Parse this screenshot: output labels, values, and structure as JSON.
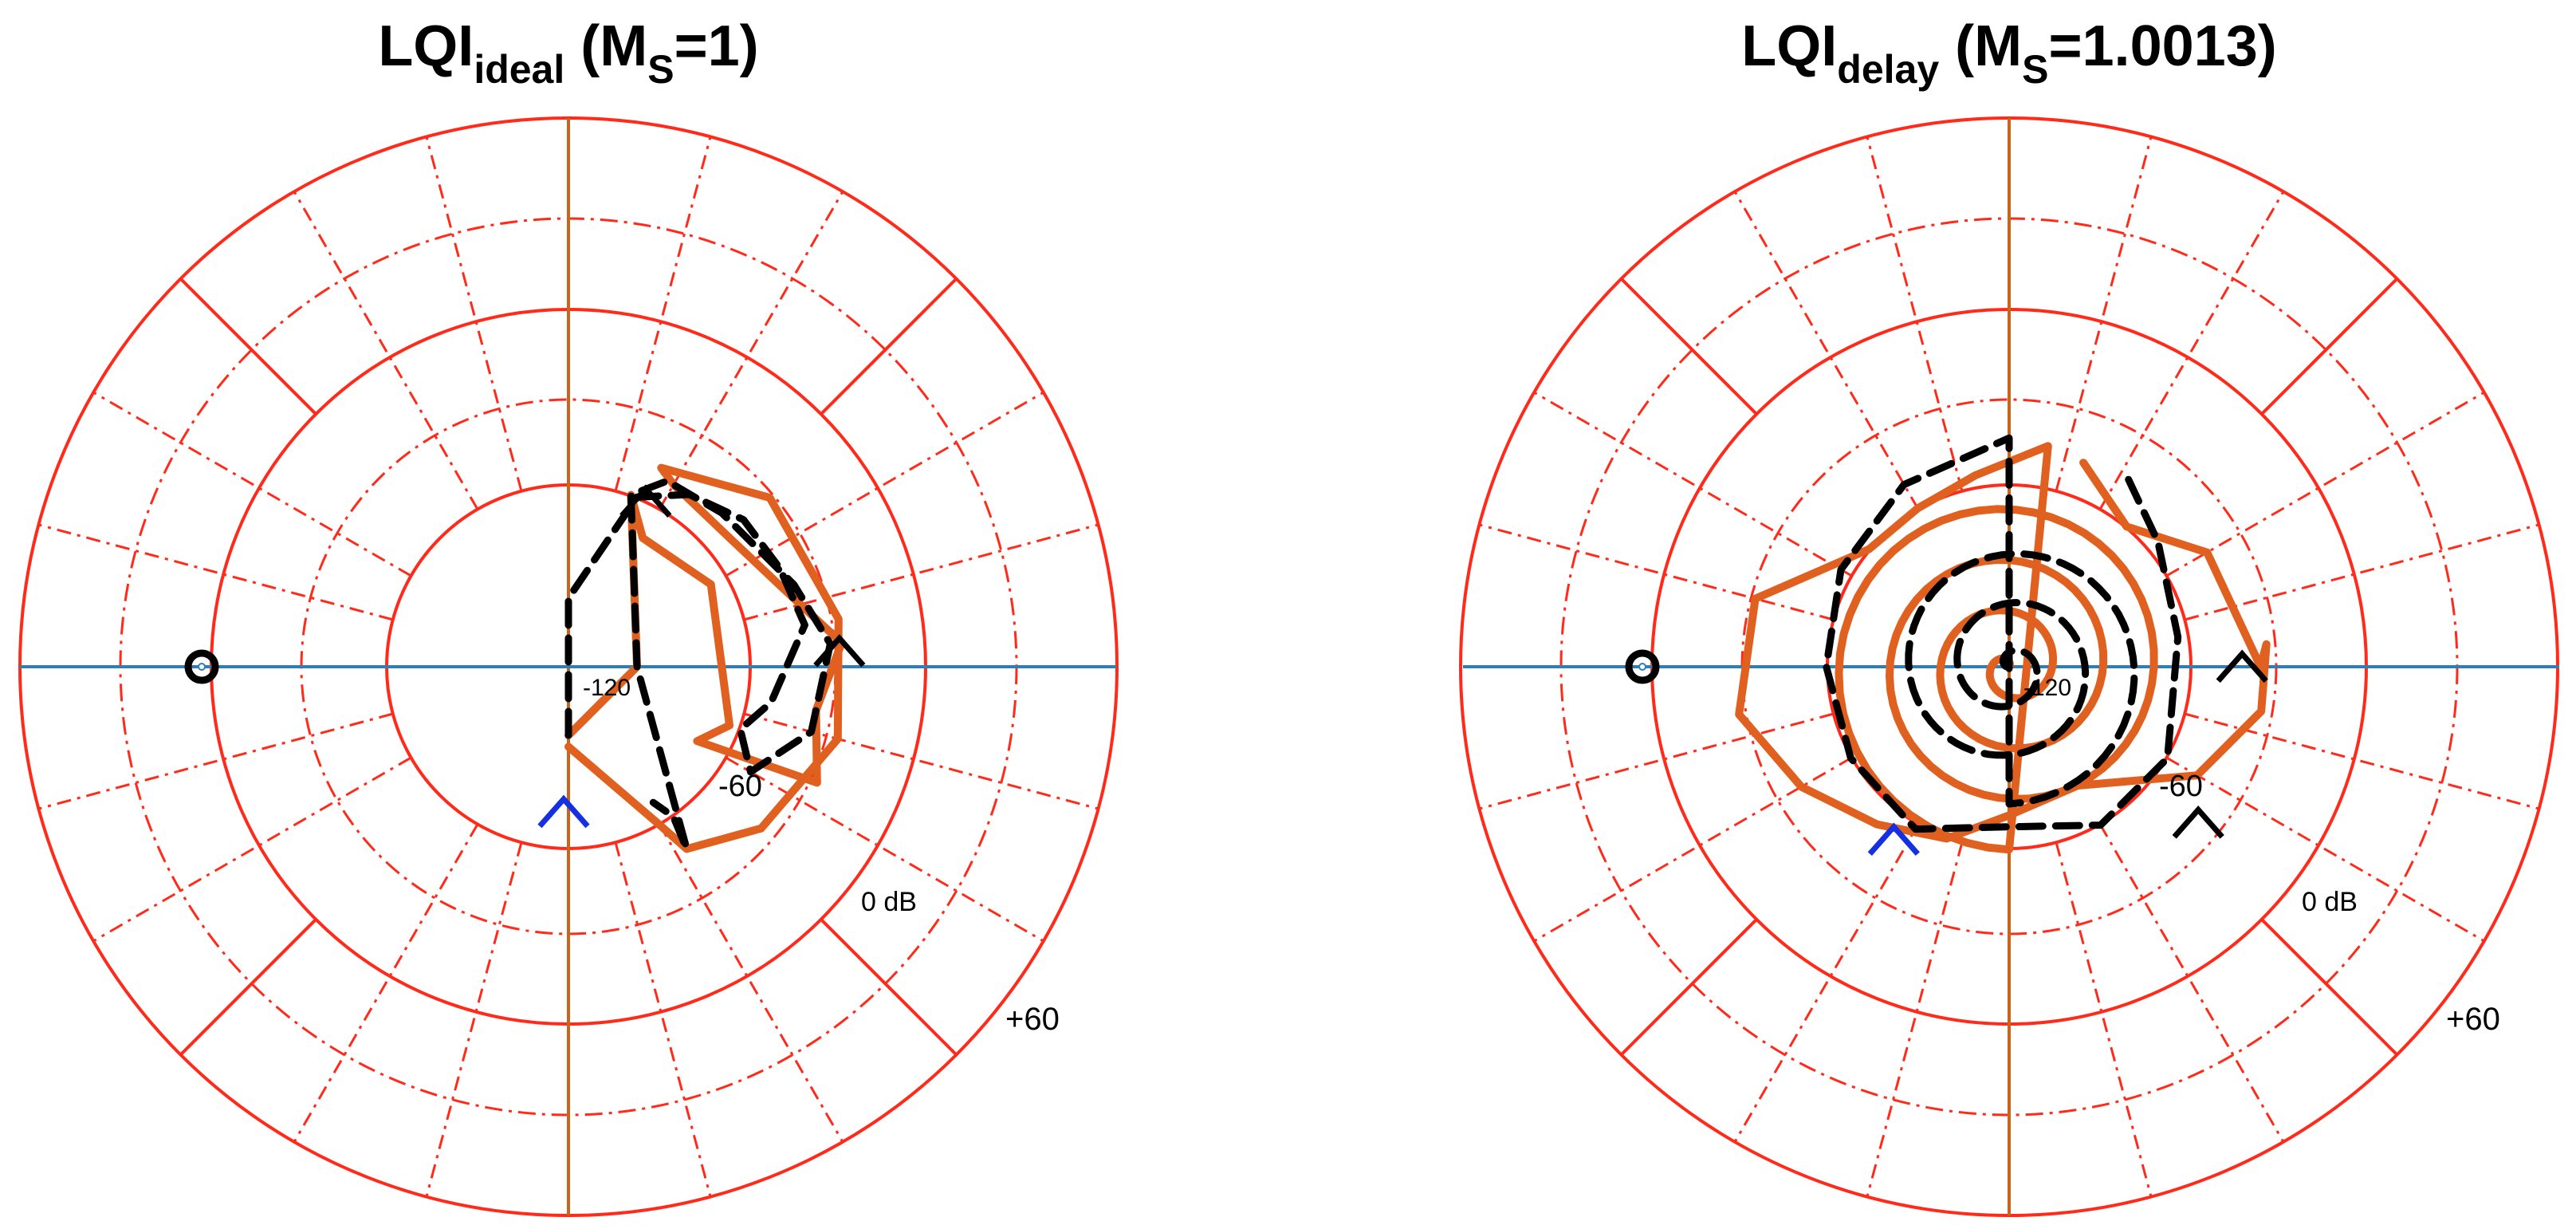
{
  "figure": {
    "background": "#ffffff",
    "grid_color": "#ff2a1a",
    "axis_color": "#c8651c",
    "hline_color": "#2f7fb5",
    "curve_color": "#e06020",
    "dashed_color": "#000000",
    "marker_start_color": "#1530e0",
    "critical_point_color": "#000000"
  },
  "chart_data": [
    {
      "type": "line",
      "chart_kind": "inverse Nichols / logarithmic Nyquist (polar, dB radial scale)",
      "title": {
        "main": "LQI",
        "sub": "ideal",
        "suffix_open": " (M",
        "suffix_sub": "S",
        "suffix_close": "=1)"
      },
      "radial_labels": {
        "inner": "-120",
        "mid": "-60",
        "zero": "0 dB",
        "outer": "+60"
      },
      "radial_range_db": [
        -120,
        60
      ],
      "grid": true,
      "critical_point": {
        "angle_deg": 180,
        "radius_db": 0
      },
      "series": [
        {
          "style": "solid",
          "points": [
            [
              270,
              -150
            ],
            [
              0,
              -150
            ],
            [
              70,
              -100
            ],
            [
              60,
              -115
            ],
            [
              30,
              -108
            ],
            [
              -20,
              -105
            ],
            [
              -30,
              -115
            ],
            [
              -25,
              -60
            ],
            [
              -10,
              -70
            ],
            [
              5,
              -60
            ],
            [
              20,
              -80
            ],
            [
              40,
              -90
            ],
            [
              60,
              -88
            ],
            [
              65,
              -84
            ],
            [
              40,
              -65
            ],
            [
              10,
              -60
            ],
            [
              -15,
              -58
            ],
            [
              -40,
              -70
            ],
            [
              -57,
              -85
            ],
            [
              -60,
              -100
            ],
            [
              -90,
              -145
            ]
          ]
        },
        {
          "style": "dashed",
          "points": [
            [
              -90,
              -150
            ],
            [
              90,
              -150
            ],
            [
              68,
              -100
            ],
            [
              55,
              -88
            ],
            [
              40,
              -80
            ],
            [
              25,
              -78
            ],
            [
              10,
              -75
            ],
            [
              -10,
              -90
            ],
            [
              -20,
              -100
            ],
            [
              -30,
              -88
            ],
            [
              -15,
              -70
            ],
            [
              5,
              -65
            ],
            [
              20,
              -75
            ],
            [
              45,
              -85
            ],
            [
              62,
              -88
            ],
            [
              70,
              -100
            ],
            [
              0,
              -150
            ],
            [
              -57,
              -85
            ],
            [
              -55,
              -100
            ],
            [
              -58,
              -110
            ]
          ]
        }
      ],
      "markers": [
        {
          "kind": "blue-chevron",
          "angle_deg": -92,
          "radius_db": -120
        },
        {
          "kind": "black-chevron",
          "angle_deg": 5,
          "radius_db": -61
        },
        {
          "kind": "black-chevron",
          "angle_deg": 66,
          "radius_db": -97
        }
      ]
    },
    {
      "type": "line",
      "chart_kind": "inverse Nichols / logarithmic Nyquist (polar, dB radial scale)",
      "title": {
        "main": "LQI",
        "sub": "delay",
        "suffix_open": " (M",
        "suffix_sub": "S",
        "suffix_close": "=1.0013)"
      },
      "radial_labels": {
        "inner": "-120",
        "mid": "-60",
        "zero": "0 dB",
        "outer": "+60"
      },
      "radial_range_db": [
        -120,
        60
      ],
      "grid": true,
      "critical_point": {
        "angle_deg": 180,
        "radius_db": 0
      },
      "series": [
        {
          "style": "solid",
          "spiral": {
            "turns": 4.5,
            "start_radius_db": -200,
            "end_radius_db": -100
          },
          "points": [
            [
              80,
              -82
            ],
            [
              100,
              -95
            ],
            [
              120,
              -100
            ],
            [
              140,
              -100
            ],
            [
              165,
              -65
            ],
            [
              190,
              -60
            ],
            [
              210,
              -75
            ],
            [
              230,
              -90
            ],
            [
              250,
              -100
            ],
            [
              270,
              -115
            ],
            [
              300,
              -120
            ],
            [
              330,
              -85
            ],
            [
              350,
              -68
            ],
            [
              5,
              -67
            ],
            [
              0,
              -70
            ],
            [
              30,
              -80
            ],
            [
              50,
              -100
            ],
            [
              70,
              -85
            ]
          ]
        },
        {
          "style": "dashed",
          "spiral": {
            "turns": 3.5,
            "start_radius_db": -195,
            "end_radius_db": -120
          },
          "points": [
            [
              90,
              -80
            ],
            [
              120,
              -88
            ],
            [
              150,
              -95
            ],
            [
              180,
              -100
            ],
            [
              210,
              -100
            ],
            [
              240,
              -98
            ],
            [
              270,
              -110
            ],
            [
              300,
              -100
            ],
            [
              330,
              -100
            ],
            [
              10,
              -105
            ],
            [
              40,
              -95
            ],
            [
              60,
              -80
            ]
          ]
        }
      ],
      "markers": [
        {
          "kind": "blue-chevron",
          "angle_deg": -125,
          "radius_db": -92
        },
        {
          "kind": "black-chevron",
          "angle_deg": 2,
          "radius_db": -78
        },
        {
          "kind": "black-chevron",
          "angle_deg": -38,
          "radius_db": -75
        }
      ]
    }
  ]
}
